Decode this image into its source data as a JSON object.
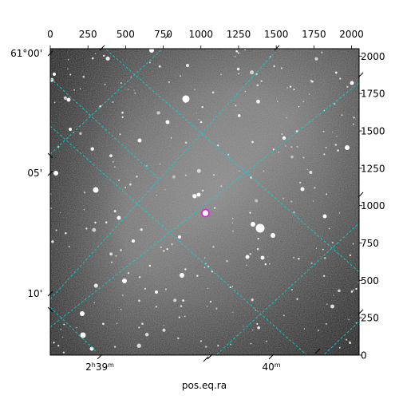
{
  "chart_data": {
    "type": "image",
    "title": "",
    "xlabel": "pos.eq.ra",
    "ylabel": "",
    "pixel_axes": {
      "x": {
        "range": [
          0,
          2050
        ],
        "ticks": [
          0,
          250,
          500,
          750,
          1000,
          1250,
          1500,
          1750,
          2000
        ],
        "tick_labels": [
          "0",
          "250",
          "500",
          "750",
          "1000",
          "1250",
          "1500",
          "1750",
          "2000"
        ]
      },
      "y": {
        "range": [
          0,
          2050
        ],
        "ticks": [
          0,
          250,
          500,
          750,
          1000,
          1250,
          1500,
          1750,
          2000
        ],
        "tick_labels": [
          "0",
          "250",
          "500",
          "750",
          "1000",
          "1250",
          "1500",
          "1750",
          "2000"
        ]
      }
    },
    "world_axes": {
      "ra": {
        "ticks": [
          {
            "main": "2",
            "sup1": "h",
            "mid": "39",
            "sup2": "m"
          },
          {
            "main": "",
            "sup1": "",
            "mid": "40",
            "sup2": "m"
          }
        ]
      },
      "dec": {
        "tick_labels": [
          "61°00'",
          "05'",
          "10'"
        ]
      }
    },
    "grid": true,
    "grid_color": "#00d8d8",
    "marker": {
      "shape": "circle",
      "color": "#ff00ff",
      "x": 1030,
      "y": 950
    }
  }
}
